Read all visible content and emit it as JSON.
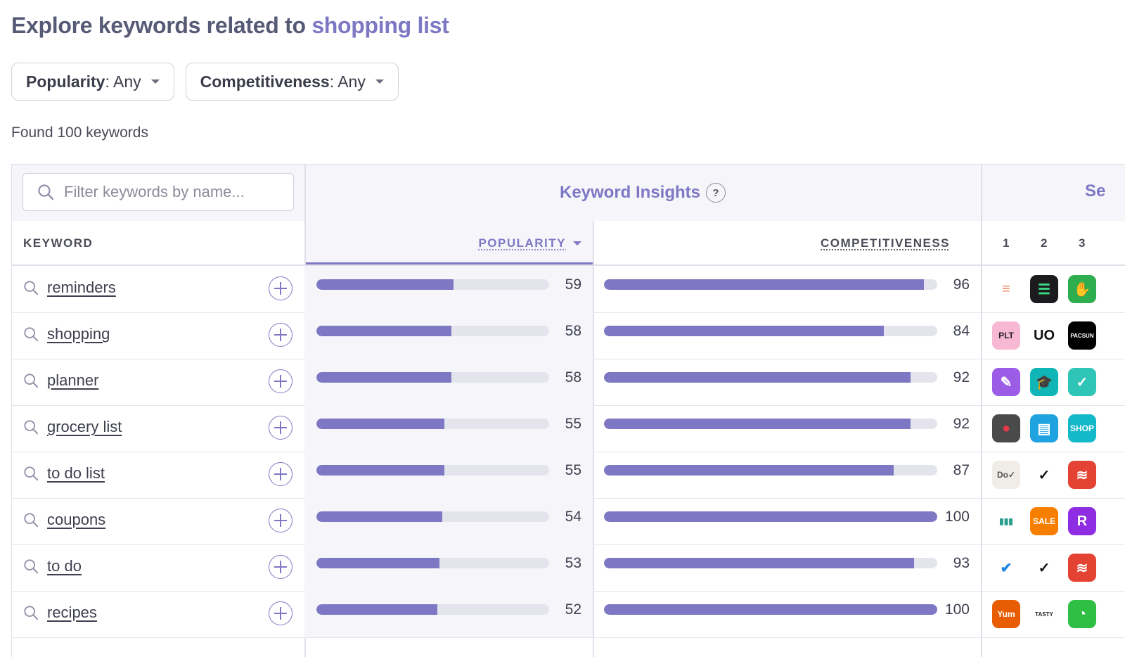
{
  "title": {
    "prefix": "Explore keywords related to ",
    "query": "shopping list"
  },
  "filters": [
    {
      "label": "Popularity",
      "value": ": Any"
    },
    {
      "label": "Competitiveness",
      "value": ": Any"
    }
  ],
  "found_text": "Found 100 keywords",
  "search": {
    "placeholder": "Filter keywords by name..."
  },
  "header": {
    "insights": "Keyword Insights",
    "help": "?",
    "se_partial": "Se",
    "keyword_col": "KEYWORD",
    "popularity_col": "POPULARITY",
    "competitiveness_col": "COMPETITIVENESS",
    "ranks": [
      "1",
      "2",
      "3"
    ]
  },
  "colors": {
    "accent": "#7e77c4",
    "bar_track": "#e4e4ec",
    "title": "#565a75"
  },
  "rows": [
    {
      "keyword": "reminders",
      "popularity": 59,
      "competitiveness": 96,
      "apps": [
        {
          "icon": "reminders-app-icon",
          "bg": "#ffffff",
          "fg": "#e86",
          "text": "≡"
        },
        {
          "icon": "list-app-icon",
          "bg": "#1c1c1e",
          "fg": "#3ddc84",
          "text": "☰"
        },
        {
          "icon": "hand-app-icon",
          "bg": "#2fae4f",
          "fg": "#fff",
          "text": "✋"
        }
      ]
    },
    {
      "keyword": "shopping",
      "popularity": 58,
      "competitiveness": 84,
      "apps": [
        {
          "icon": "plt-app-icon",
          "bg": "#f7b8d4",
          "fg": "#222",
          "text": "PLT"
        },
        {
          "icon": "uo-app-icon",
          "bg": "#ffffff",
          "fg": "#111",
          "text": "UO"
        },
        {
          "icon": "pacsun-app-icon",
          "bg": "#000000",
          "fg": "#fff",
          "text": "PACSUN"
        }
      ]
    },
    {
      "keyword": "planner",
      "popularity": 58,
      "competitiveness": 92,
      "apps": [
        {
          "icon": "feather-app-icon",
          "bg": "#9b5de5",
          "fg": "#fff",
          "text": "✎"
        },
        {
          "icon": "graduation-app-icon",
          "bg": "#10b6b6",
          "fg": "#fff",
          "text": "🎓"
        },
        {
          "icon": "multi-app-icon",
          "bg": "#2ec4b6",
          "fg": "#fff",
          "text": "✓"
        }
      ]
    },
    {
      "keyword": "grocery list",
      "popularity": 55,
      "competitiveness": 92,
      "apps": [
        {
          "icon": "apple-app-icon",
          "bg": "#4a4a4a",
          "fg": "#e63946",
          "text": "●"
        },
        {
          "icon": "notes-app-icon",
          "bg": "#1fa2e0",
          "fg": "#fff",
          "text": "▤"
        },
        {
          "icon": "shop-app-icon",
          "bg": "#13b8c9",
          "fg": "#fff",
          "text": "SHOP"
        }
      ]
    },
    {
      "keyword": "to do list",
      "popularity": 55,
      "competitiveness": 87,
      "apps": [
        {
          "icon": "do-app-icon",
          "bg": "#f0ede8",
          "fg": "#555",
          "text": "Do✓"
        },
        {
          "icon": "check-app-icon",
          "bg": "#ffffff",
          "fg": "#111",
          "text": "✓"
        },
        {
          "icon": "todoist-app-icon",
          "bg": "#e44232",
          "fg": "#fff",
          "text": "≋"
        }
      ]
    },
    {
      "keyword": "coupons",
      "popularity": 54,
      "competitiveness": 100,
      "apps": [
        {
          "icon": "flyers-app-icon",
          "bg": "#ffffff",
          "fg": "#2a9d8f",
          "text": "▮▮▮"
        },
        {
          "icon": "sale-app-icon",
          "bg": "#f77f00",
          "fg": "#fff",
          "text": "SALE"
        },
        {
          "icon": "r-app-icon",
          "bg": "#8e2de2",
          "fg": "#fff",
          "text": "R"
        }
      ]
    },
    {
      "keyword": "to do",
      "popularity": 53,
      "competitiveness": 93,
      "apps": [
        {
          "icon": "blue-check-app-icon",
          "bg": "#ffffff",
          "fg": "#1e88e5",
          "text": "✔"
        },
        {
          "icon": "check-app-icon",
          "bg": "#ffffff",
          "fg": "#111",
          "text": "✓"
        },
        {
          "icon": "todoist-app-icon",
          "bg": "#e44232",
          "fg": "#fff",
          "text": "≋"
        }
      ]
    },
    {
      "keyword": "recipes",
      "popularity": 52,
      "competitiveness": 100,
      "apps": [
        {
          "icon": "yum-app-icon",
          "bg": "#e85d04",
          "fg": "#fff",
          "text": "Yum"
        },
        {
          "icon": "tasty-app-icon",
          "bg": "#ffffff",
          "fg": "#222",
          "text": "TASTY"
        },
        {
          "icon": "lime-app-icon",
          "bg": "#2fbf45",
          "fg": "#fff",
          "text": "◔"
        }
      ]
    }
  ]
}
